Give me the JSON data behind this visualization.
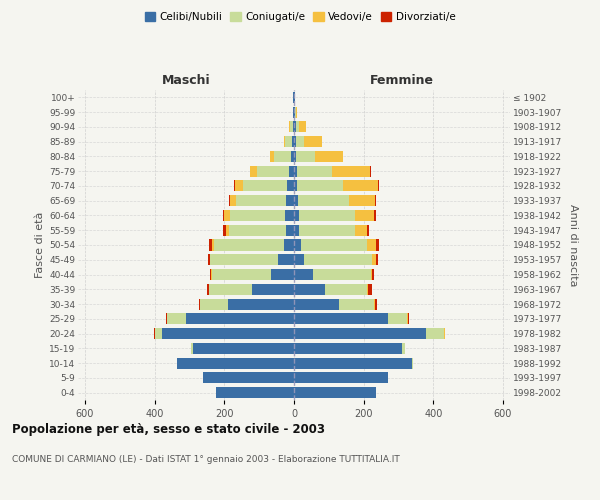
{
  "age_groups": [
    "0-4",
    "5-9",
    "10-14",
    "15-19",
    "20-24",
    "25-29",
    "30-34",
    "35-39",
    "40-44",
    "45-49",
    "50-54",
    "55-59",
    "60-64",
    "65-69",
    "70-74",
    "75-79",
    "80-84",
    "85-89",
    "90-94",
    "95-99",
    "100+"
  ],
  "birth_years": [
    "1998-2002",
    "1993-1997",
    "1988-1992",
    "1983-1987",
    "1978-1982",
    "1973-1977",
    "1968-1972",
    "1963-1967",
    "1958-1962",
    "1953-1957",
    "1948-1952",
    "1943-1947",
    "1938-1942",
    "1933-1937",
    "1928-1932",
    "1923-1927",
    "1918-1922",
    "1913-1917",
    "1908-1912",
    "1903-1907",
    "≤ 1902"
  ],
  "males": {
    "celibe": [
      225,
      260,
      335,
      290,
      380,
      310,
      190,
      120,
      65,
      45,
      30,
      22,
      25,
      22,
      20,
      15,
      8,
      5,
      3,
      2,
      2
    ],
    "coniugato": [
      0,
      0,
      2,
      5,
      20,
      55,
      80,
      125,
      170,
      195,
      200,
      165,
      160,
      145,
      125,
      90,
      50,
      20,
      8,
      2,
      0
    ],
    "vedovo": [
      0,
      0,
      0,
      0,
      0,
      0,
      0,
      0,
      2,
      2,
      5,
      8,
      15,
      18,
      25,
      20,
      12,
      5,
      2,
      0,
      0
    ],
    "divorziato": [
      0,
      0,
      0,
      0,
      1,
      2,
      2,
      5,
      3,
      5,
      8,
      8,
      5,
      3,
      2,
      2,
      0,
      0,
      0,
      0,
      0
    ]
  },
  "females": {
    "nubile": [
      235,
      270,
      340,
      310,
      380,
      270,
      130,
      90,
      55,
      30,
      20,
      15,
      15,
      12,
      10,
      8,
      5,
      5,
      5,
      2,
      2
    ],
    "coniugata": [
      0,
      0,
      2,
      8,
      50,
      55,
      100,
      120,
      165,
      195,
      190,
      160,
      160,
      145,
      130,
      100,
      55,
      25,
      10,
      3,
      0
    ],
    "vedova": [
      0,
      0,
      0,
      0,
      2,
      2,
      2,
      3,
      5,
      10,
      25,
      35,
      55,
      75,
      100,
      110,
      80,
      50,
      20,
      5,
      0
    ],
    "divorziata": [
      0,
      0,
      0,
      0,
      2,
      3,
      5,
      10,
      5,
      5,
      8,
      5,
      5,
      3,
      3,
      3,
      2,
      0,
      0,
      0,
      0
    ]
  },
  "colors": {
    "celibe": "#3A6EA5",
    "coniugato": "#C8DC9A",
    "vedovo": "#F5C040",
    "divorziato": "#CC2200"
  },
  "legend_labels": [
    "Celibi/Nubili",
    "Coniugati/e",
    "Vedovi/e",
    "Divorziati/e"
  ],
  "title": "Popolazione per età, sesso e stato civile - 2003",
  "subtitle": "COMUNE DI CARMIANO (LE) - Dati ISTAT 1° gennaio 2003 - Elaborazione TUTTITALIA.IT",
  "ylabel_left": "Fasce di età",
  "ylabel_right": "Anni di nascita",
  "xlabel_left": "Maschi",
  "xlabel_right": "Femmine",
  "xlim": 620,
  "background_color": "#f5f5f0",
  "grid_color": "#cccccc"
}
